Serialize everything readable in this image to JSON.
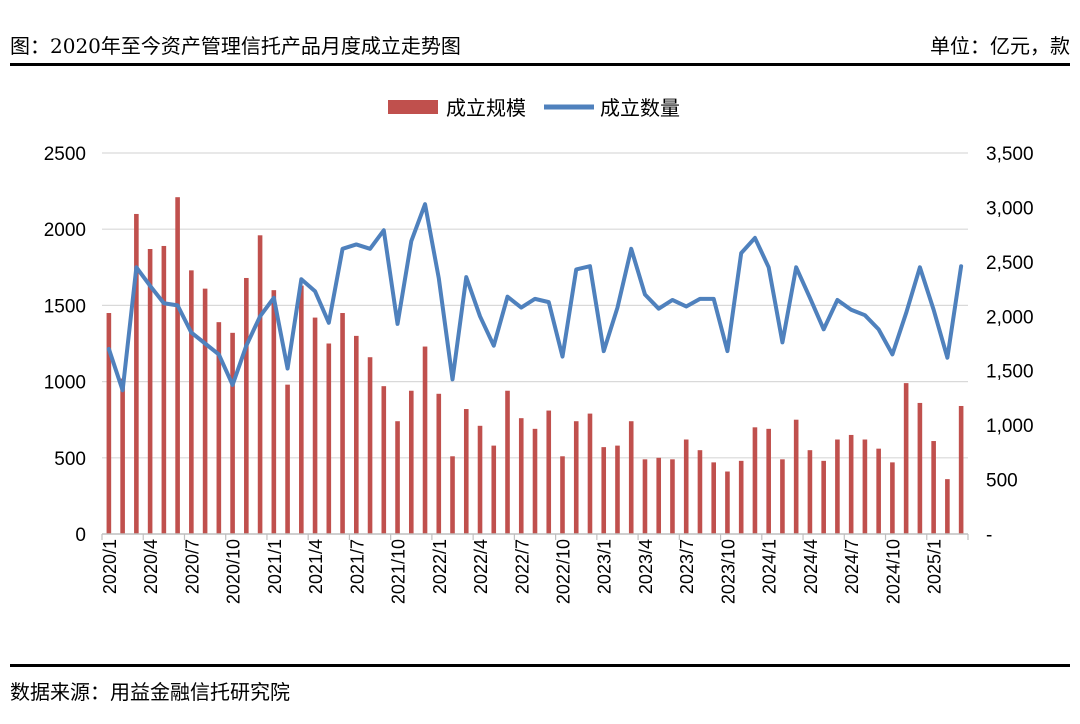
{
  "header": {
    "title": "图：2020年至今资产管理信托产品月度成立走势图",
    "unit": "单位：亿元，款"
  },
  "footer": {
    "source": "数据来源：用益金融信托研究院"
  },
  "colors": {
    "bar": "#c0504d",
    "line": "#4f81bd",
    "grid": "#d9d9d9",
    "axis": "#bfbfbf"
  },
  "chart_data": {
    "type": "bar",
    "legend_position": "top-center",
    "grid": true,
    "x": [
      "2020/1",
      "2020/2",
      "2020/3",
      "2020/4",
      "2020/5",
      "2020/6",
      "2020/7",
      "2020/8",
      "2020/9",
      "2020/10",
      "2020/11",
      "2020/12",
      "2021/1",
      "2021/2",
      "2021/3",
      "2021/4",
      "2021/5",
      "2021/6",
      "2021/7",
      "2021/8",
      "2021/9",
      "2021/10",
      "2021/11",
      "2021/12",
      "2022/1",
      "2022/2",
      "2022/3",
      "2022/4",
      "2022/5",
      "2022/6",
      "2022/7",
      "2022/8",
      "2022/9",
      "2022/10",
      "2022/11",
      "2022/12",
      "2023/1",
      "2023/2",
      "2023/3",
      "2023/4",
      "2023/5",
      "2023/6",
      "2023/7",
      "2023/8",
      "2023/9",
      "2023/10",
      "2023/11",
      "2023/12",
      "2024/1",
      "2024/2",
      "2024/3",
      "2024/4",
      "2024/5",
      "2024/6",
      "2024/7",
      "2024/8",
      "2024/9",
      "2024/10",
      "2024/11",
      "2024/12",
      "2025/1",
      "2025/2",
      "2025/3"
    ],
    "x_tick_labels": [
      "2020/1",
      "2020/4",
      "2020/7",
      "2020/10",
      "2021/1",
      "2021/4",
      "2021/7",
      "2021/10",
      "2022/1",
      "2022/4",
      "2022/7",
      "2022/10",
      "2023/1",
      "2023/4",
      "2023/7",
      "2023/10",
      "2024/1",
      "2024/4",
      "2024/7",
      "2024/10",
      "2025/1"
    ],
    "y_left": {
      "range": [
        0,
        2500
      ],
      "ticks": [
        0,
        500,
        1000,
        1500,
        2000,
        2500
      ],
      "tick_labels": [
        "0",
        "500",
        "1000",
        "1500",
        "2000",
        "2500"
      ]
    },
    "y_right": {
      "range": [
        0,
        3500
      ],
      "ticks": [
        0,
        500,
        1000,
        1500,
        2000,
        2500,
        3000,
        3500
      ],
      "tick_labels": [
        "-",
        "500",
        "1,000",
        "1,500",
        "2,000",
        "2,500",
        "3,000",
        "3,500"
      ]
    },
    "series": [
      {
        "name": "成立规模",
        "type": "bar",
        "axis": "left",
        "values": [
          1450,
          1020,
          2100,
          1870,
          1890,
          2210,
          1730,
          1610,
          1390,
          1320,
          1680,
          1960,
          1600,
          980,
          1630,
          1420,
          1250,
          1450,
          1300,
          1160,
          970,
          740,
          940,
          1230,
          920,
          510,
          820,
          710,
          580,
          940,
          760,
          690,
          810,
          510,
          740,
          790,
          570,
          580,
          740,
          490,
          500,
          490,
          620,
          550,
          470,
          410,
          480,
          700,
          690,
          490,
          750,
          550,
          480,
          620,
          650,
          620,
          560,
          470,
          990,
          860,
          610,
          360,
          840
        ]
      },
      {
        "name": "成立数量",
        "type": "line",
        "axis": "right",
        "values": [
          1700,
          1320,
          2450,
          2280,
          2120,
          2100,
          1850,
          1750,
          1650,
          1370,
          1730,
          2000,
          2170,
          1520,
          2340,
          2230,
          1940,
          2620,
          2660,
          2620,
          2790,
          1930,
          2690,
          3030,
          2350,
          1420,
          2360,
          2000,
          1730,
          2180,
          2080,
          2160,
          2130,
          1630,
          2430,
          2460,
          1680,
          2080,
          2620,
          2200,
          2070,
          2150,
          2090,
          2160,
          2160,
          1680,
          2580,
          2720,
          2450,
          1760,
          2450,
          2170,
          1880,
          2150,
          2060,
          2010,
          1880,
          1650,
          2030,
          2450,
          2060,
          1620,
          2460
        ]
      }
    ]
  }
}
